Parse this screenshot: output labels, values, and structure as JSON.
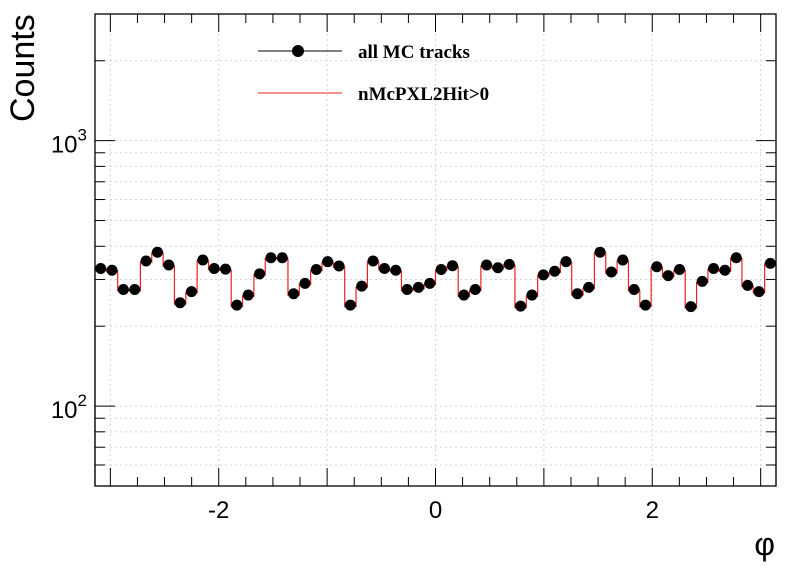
{
  "chart_data": {
    "type": "line",
    "xlabel": "φ",
    "ylabel": "Counts",
    "xlim": [
      -3.1416,
      3.1416
    ],
    "ylim": [
      50,
      3000
    ],
    "yscale": "log",
    "grid": true,
    "legend_position": "top-center",
    "x_ticks": [
      {
        "value": -2,
        "label": "-2"
      },
      {
        "value": 0,
        "label": "0"
      },
      {
        "value": 2,
        "label": "2"
      }
    ],
    "y_ticks": [
      {
        "value": 100,
        "base": "10",
        "exp": "2"
      },
      {
        "value": 1000,
        "base": "10",
        "exp": "3"
      }
    ],
    "bin_edges": [
      -3.1416,
      3.1416
    ],
    "series": [
      {
        "name": "all MC tracks",
        "style": "markers",
        "color": "#000000",
        "values": [
          330,
          325,
          275,
          275,
          352,
          380,
          340,
          245,
          270,
          355,
          330,
          328,
          240,
          262,
          315,
          362,
          362,
          265,
          290,
          327,
          350,
          337,
          240,
          283,
          352,
          330,
          325,
          275,
          280,
          290,
          327,
          338,
          262,
          275,
          340,
          332,
          342,
          238,
          262,
          312,
          322,
          350,
          265,
          280,
          380,
          320,
          355,
          275,
          240,
          335,
          310,
          327,
          237,
          295,
          330,
          325,
          362,
          285,
          270,
          345
        ]
      },
      {
        "name": "nMcPXL2Hit>0",
        "style": "step",
        "color": "#e8231f",
        "values": [
          328,
          322,
          272,
          272,
          349,
          377,
          337,
          242,
          267,
          352,
          327,
          325,
          237,
          259,
          312,
          359,
          359,
          262,
          287,
          324,
          347,
          334,
          237,
          280,
          349,
          327,
          322,
          272,
          277,
          287,
          324,
          335,
          259,
          272,
          337,
          329,
          339,
          235,
          259,
          309,
          319,
          347,
          262,
          277,
          377,
          317,
          352,
          272,
          237,
          332,
          307,
          324,
          234,
          292,
          327,
          322,
          359,
          282,
          267,
          342
        ]
      }
    ]
  }
}
